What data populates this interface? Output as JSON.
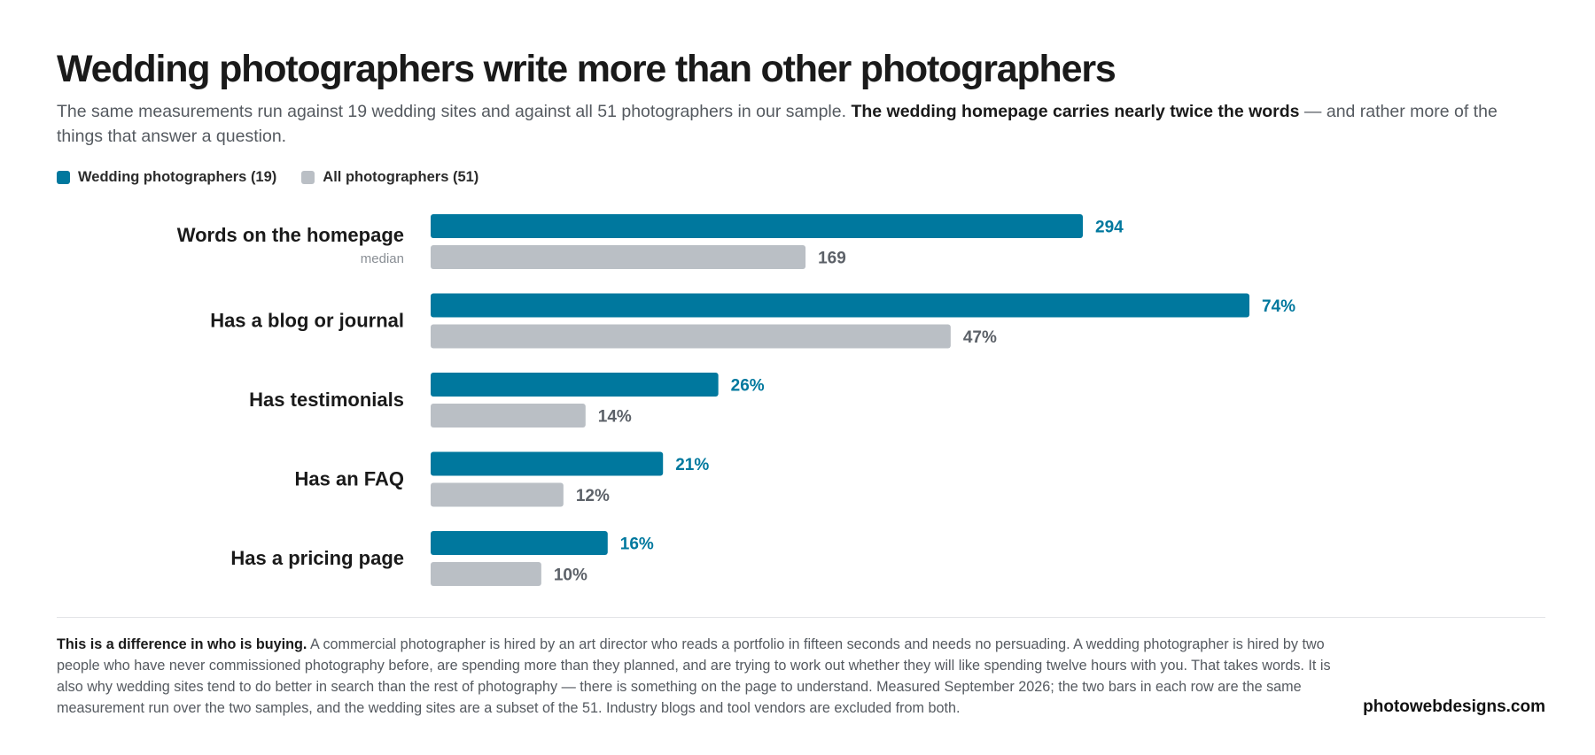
{
  "title": "Wedding photographers write more than other photographers",
  "subtitle": {
    "lead": "The same measurements run against 19 wedding sites and against all 51 photographers in our sample. ",
    "emphasis": "The wedding homepage carries nearly twice the words",
    "tail": " — and rather more of the things that answer a question."
  },
  "colors": {
    "wedding": "#00789e",
    "all": "#babfc5",
    "wedding_label": "#00789e",
    "all_label": "#5c6168"
  },
  "chart_data": {
    "type": "bar",
    "orientation": "horizontal",
    "categories": [
      "Words on the homepage",
      "Has a blog or journal",
      "Has testimonials",
      "Has an FAQ",
      "Has a pricing page"
    ],
    "category_notes": [
      "median",
      "",
      "",
      "",
      ""
    ],
    "series": [
      {
        "name": "Wedding photographers (19)",
        "values": [
          294,
          74,
          26,
          21,
          16
        ],
        "labels": [
          "294",
          "74%",
          "26%",
          "21%",
          "16%"
        ]
      },
      {
        "name": "All photographers (51)",
        "values": [
          169,
          47,
          14,
          12,
          10
        ],
        "labels": [
          "169",
          "47%",
          "14%",
          "12%",
          "10%"
        ]
      }
    ],
    "legend_position": "top-left",
    "grid": false,
    "axes_shown": false
  },
  "footnote": {
    "lead": "This is a difference in who is buying.",
    "body": " A commercial photographer is hired by an art director who reads a portfolio in fifteen seconds and needs no persuading. A wedding photographer is hired by two people who have never commissioned photography before, are spending more than they planned, and are trying to work out whether they will like spending twelve hours with you. That takes words. It is also why wedding sites tend to do better in search than the rest of photography — there is something on the page to understand. Measured September 2026; the two bars in each row are the same measurement run over the two samples, and the wedding sites are a subset of the 51. Industry blogs and tool vendors are excluded from both."
  },
  "source": "photowebdesigns.com"
}
